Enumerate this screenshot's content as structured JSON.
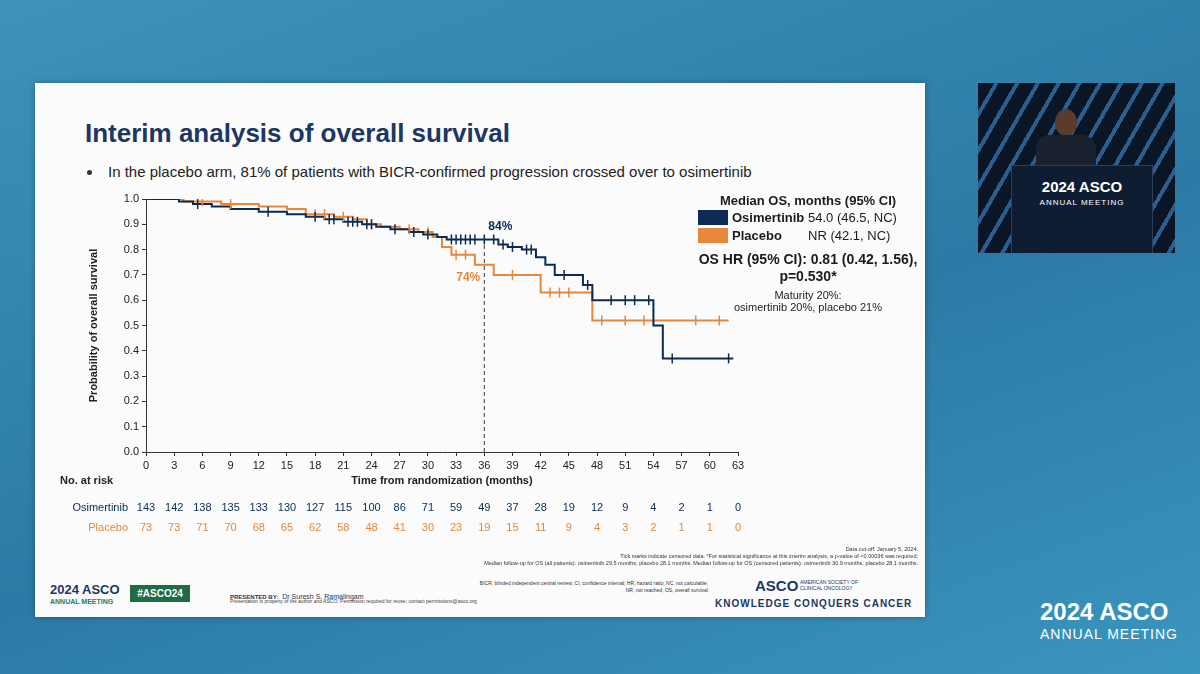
{
  "chart_data": {
    "type": "line",
    "title": "Interim analysis of overall survival",
    "subtitle": "In the placebo arm, 81% of patients with BICR-confirmed progression crossed over to osimertinib",
    "x_label": "Time from randomization (months)",
    "y_label": "Probability of overall survival",
    "xlim": [
      0,
      63
    ],
    "xticks": [
      0,
      3,
      6,
      9,
      12,
      15,
      18,
      21,
      24,
      27,
      30,
      33,
      36,
      39,
      42,
      45,
      48,
      51,
      54,
      57,
      60,
      63
    ],
    "ylim": [
      0,
      1
    ],
    "yticks": [
      {
        "value": 0,
        "label": "0.0"
      },
      {
        "value": 0.1,
        "label": "0.1"
      },
      {
        "value": 0.2,
        "label": "0.2"
      },
      {
        "value": 0.3,
        "label": "0.3"
      },
      {
        "value": 0.4,
        "label": "0.4"
      },
      {
        "value": 0.5,
        "label": "0.5"
      },
      {
        "value": 0.6,
        "label": "0.6"
      },
      {
        "value": 0.7,
        "label": "0.7"
      },
      {
        "value": 0.8,
        "label": "0.8"
      },
      {
        "value": 0.9,
        "label": "0.9"
      },
      {
        "value": 1,
        "label": "1.0"
      }
    ],
    "grid": false,
    "legend": "upper right",
    "legend_title": "Median OS, months (95% CI)",
    "series": [
      {
        "name": "Osimertinib",
        "color": "#0b2b55",
        "line_style": "step",
        "x": [
          0,
          3.5,
          5,
          7,
          9,
          12,
          15,
          17,
          19,
          21,
          23,
          24.5,
          26,
          28,
          29.5,
          31,
          32,
          37.5,
          38.5,
          40,
          41.5,
          42.5,
          43.5,
          46.5,
          47.5,
          54,
          55,
          62.5
        ],
        "values": [
          1.0,
          0.99,
          0.98,
          0.97,
          0.96,
          0.95,
          0.94,
          0.93,
          0.92,
          0.91,
          0.9,
          0.89,
          0.88,
          0.87,
          0.86,
          0.85,
          0.84,
          0.82,
          0.81,
          0.8,
          0.77,
          0.74,
          0.7,
          0.66,
          0.6,
          0.5,
          0.37,
          0.37
        ],
        "censored": {
          "x": [
            5.5,
            13,
            18,
            19.5,
            20,
            21.5,
            22,
            22.5,
            23.5,
            24,
            26.5,
            28.5,
            30,
            32.5,
            33,
            33.5,
            34,
            34.5,
            35,
            36,
            37,
            38,
            39,
            40.5,
            41,
            44.5,
            47,
            49.5,
            51,
            52,
            53.5,
            56,
            62
          ],
          "values": [
            0.98,
            0.95,
            0.93,
            0.92,
            0.92,
            0.91,
            0.91,
            0.91,
            0.9,
            0.9,
            0.88,
            0.87,
            0.86,
            0.84,
            0.84,
            0.84,
            0.84,
            0.84,
            0.84,
            0.84,
            0.84,
            0.82,
            0.81,
            0.8,
            0.8,
            0.7,
            0.66,
            0.6,
            0.6,
            0.6,
            0.6,
            0.37,
            0.37
          ]
        },
        "median_os": "54.0 (46.5, NC)",
        "at_risk": [
          143,
          142,
          138,
          135,
          133,
          130,
          127,
          115,
          100,
          86,
          71,
          59,
          49,
          37,
          28,
          19,
          12,
          9,
          4,
          2,
          1,
          0
        ]
      },
      {
        "name": "Placebo",
        "color": "#e8873a",
        "line_style": "step",
        "x": [
          0,
          4,
          8,
          12,
          15,
          17,
          20,
          22,
          23.5,
          25,
          27,
          29,
          30.5,
          31.5,
          32.5,
          35,
          37,
          42,
          47.5,
          62
        ],
        "values": [
          1.0,
          0.99,
          0.98,
          0.97,
          0.96,
          0.94,
          0.93,
          0.92,
          0.9,
          0.89,
          0.88,
          0.87,
          0.85,
          0.81,
          0.78,
          0.74,
          0.7,
          0.63,
          0.52,
          0.52
        ],
        "censored": {
          "x": [
            6,
            9,
            18,
            19,
            21,
            24,
            28,
            30,
            33,
            34,
            39,
            43,
            44,
            45,
            48.5,
            51,
            53,
            58.5,
            61
          ],
          "values": [
            0.99,
            0.98,
            0.94,
            0.94,
            0.93,
            0.9,
            0.88,
            0.87,
            0.78,
            0.78,
            0.7,
            0.63,
            0.63,
            0.63,
            0.52,
            0.52,
            0.52,
            0.52,
            0.52
          ]
        },
        "median_os": "NR (42.1, NC)",
        "at_risk": [
          73,
          73,
          71,
          70,
          68,
          65,
          62,
          58,
          48,
          41,
          30,
          23,
          19,
          15,
          11,
          9,
          4,
          3,
          2,
          1,
          1,
          0
        ]
      }
    ],
    "annotations": [
      {
        "x": 36,
        "y": 0.84,
        "label": "84%",
        "series": "Osimertinib"
      },
      {
        "x": 36,
        "y": 0.74,
        "label": "74%",
        "series": "Placebo"
      }
    ],
    "hazard_ratio": "OS HR (95% CI): 0.81 (0.42, 1.56), p=0.530*",
    "maturity": [
      "Maturity 20%:",
      "osimertinib 20%, placebo 21%"
    ],
    "at_risk_title": "No. at risk"
  },
  "slide": {
    "footnotes": [
      "Data cut-off: January 5, 2024.",
      "Tick marks indicate censored data. *For statistical significance at this interim analysis, a p-value of <0.00036 was required;",
      "Median follow-up for OS (all patients): osimertinib 29.5 months, placebo 28.1 months. Median follow-up for OS (censored patients): osimertinib 30.9 months, placebo 28.1 months."
    ],
    "abbreviations": [
      "BICR, blinded independent central review; CI, confidence interval; HR, hazard ratio; NC, not calculable;",
      "NR, not reached; OS, overall survival"
    ],
    "meeting": [
      "2024 ASCO",
      "ANNUAL MEETING"
    ],
    "hashtag": "#ASCO24",
    "presented_by": "PRESENTED BY:",
    "presenter": "Dr Suresh S. Ramalingam",
    "copyright": "Presentation is property of the author and ASCO. Permission required for reuse; contact permissions@asco.org",
    "society": [
      "ASCO",
      "AMERICAN SOCIETY OF CLINICAL ONCOLOGY",
      "KNOWLEDGE CONQUERS CANCER"
    ]
  }
}
